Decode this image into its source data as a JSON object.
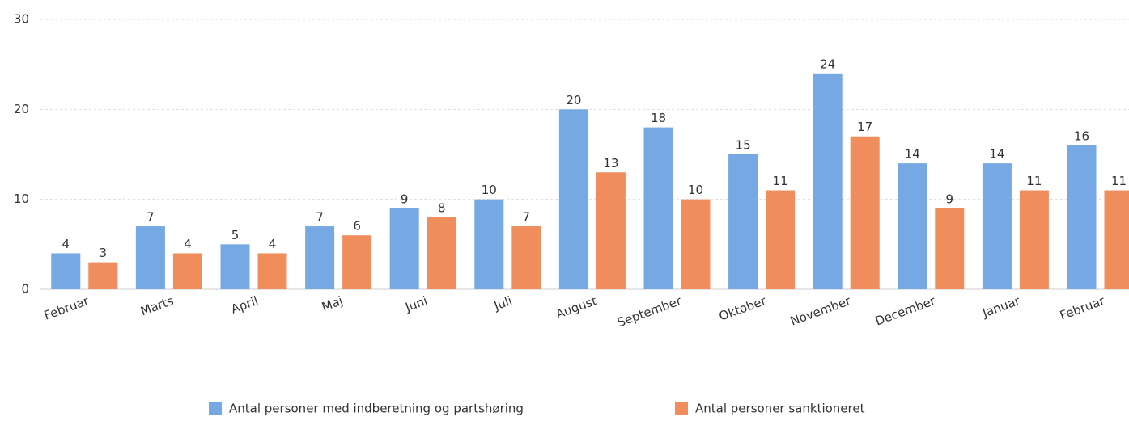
{
  "chart_data": {
    "type": "bar",
    "categories": [
      "Februar",
      "Marts",
      "April",
      "Maj",
      "Juni",
      "Juli",
      "August",
      "September",
      "Oktober",
      "November",
      "December",
      "Januar",
      "Februar"
    ],
    "series": [
      {
        "name": "Antal personer med indberetning og partshøring",
        "color": "#76a9e3",
        "values": [
          4,
          7,
          5,
          7,
          9,
          10,
          20,
          18,
          15,
          24,
          14,
          14,
          16
        ]
      },
      {
        "name": "Antal personer sanktioneret",
        "color": "#ef8d5d",
        "values": [
          3,
          4,
          4,
          6,
          8,
          7,
          13,
          10,
          11,
          17,
          9,
          11,
          11
        ]
      }
    ],
    "ylim": [
      0,
      30
    ],
    "yticks": [
      0,
      10,
      20,
      30
    ],
    "grid": true,
    "legend": "bottom"
  }
}
